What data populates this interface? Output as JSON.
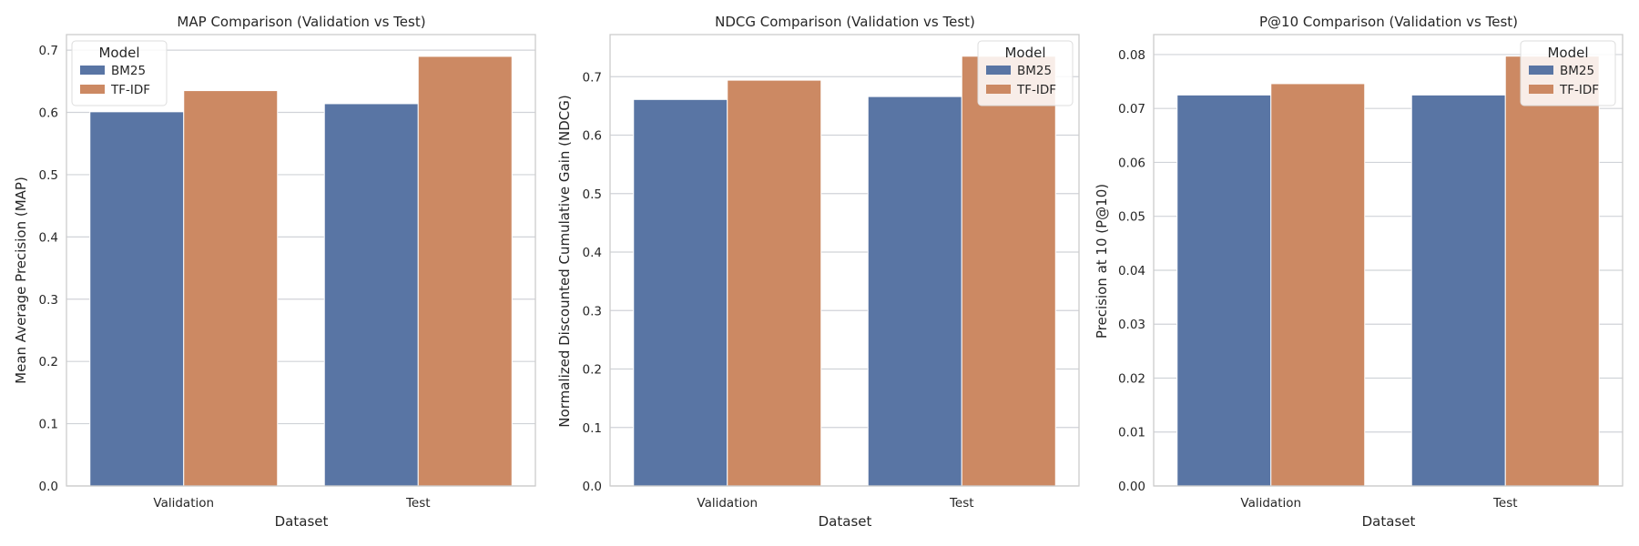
{
  "colors": {
    "BM25": "#5975a4",
    "TF-IDF": "#cc8963",
    "grid": "#d0d3d8",
    "frame": "#cccccc",
    "text": "#262626"
  },
  "chart_data": [
    {
      "type": "bar",
      "title": "MAP Comparison (Validation vs Test)",
      "xlabel": "Dataset",
      "ylabel": "Mean Average Precision (MAP)",
      "categories": [
        "Validation",
        "Test"
      ],
      "series": [
        {
          "name": "BM25",
          "values": [
            0.601,
            0.614
          ]
        },
        {
          "name": "TF-IDF",
          "values": [
            0.635,
            0.69
          ]
        }
      ],
      "ylim": [
        0,
        0.725
      ],
      "yticks": [
        "0.0",
        "0.1",
        "0.2",
        "0.3",
        "0.4",
        "0.5",
        "0.6",
        "0.7"
      ],
      "grid": true,
      "legend": {
        "title": "Model",
        "placement": "top-left"
      }
    },
    {
      "type": "bar",
      "title": "NDCG Comparison (Validation vs Test)",
      "xlabel": "Dataset",
      "ylabel": "Normalized Discounted Cumulative Gain (NDCG)",
      "categories": [
        "Validation",
        "Test"
      ],
      "series": [
        {
          "name": "BM25",
          "values": [
            0.661,
            0.666
          ]
        },
        {
          "name": "TF-IDF",
          "values": [
            0.694,
            0.735
          ]
        }
      ],
      "ylim": [
        0,
        0.772
      ],
      "yticks": [
        "0.0",
        "0.1",
        "0.2",
        "0.3",
        "0.4",
        "0.5",
        "0.6",
        "0.7"
      ],
      "grid": true,
      "legend": {
        "title": "Model",
        "placement": "top-right"
      }
    },
    {
      "type": "bar",
      "title": "P@10 Comparison (Validation vs Test)",
      "xlabel": "Dataset",
      "ylabel": "Precision at 10 (P@10)",
      "categories": [
        "Validation",
        "Test"
      ],
      "series": [
        {
          "name": "BM25",
          "values": [
            0.0725,
            0.0725
          ]
        },
        {
          "name": "TF-IDF",
          "values": [
            0.0746,
            0.0797
          ]
        }
      ],
      "ylim": [
        0,
        0.0837
      ],
      "yticks": [
        "0.00",
        "0.01",
        "0.02",
        "0.03",
        "0.04",
        "0.05",
        "0.06",
        "0.07",
        "0.08"
      ],
      "grid": true,
      "legend": {
        "title": "Model",
        "placement": "top-right"
      }
    }
  ]
}
